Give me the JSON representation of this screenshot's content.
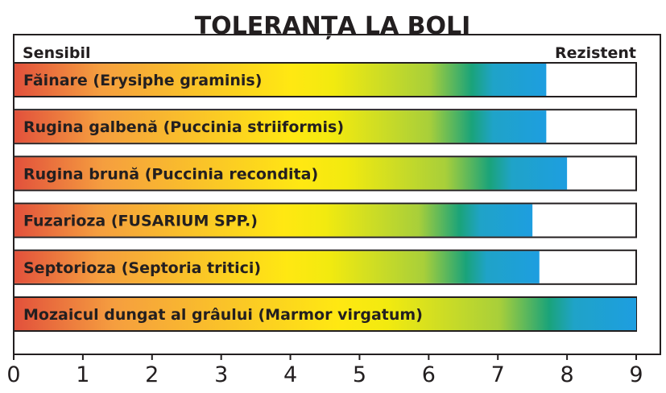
{
  "chart_data": {
    "type": "bar",
    "orientation": "horizontal",
    "title": "TOLERANȚA LA BOLI",
    "scale_left_label": "Sensibil",
    "scale_right_label": "Rezistent",
    "xlim": [
      0,
      9
    ],
    "x_ticks": [
      "0",
      "1",
      "2",
      "3",
      "4",
      "5",
      "6",
      "7",
      "8",
      "9"
    ],
    "grid": false,
    "legend": "none",
    "categories": [
      "Făinare (Erysiphe graminis)",
      "Rugina galbenă (Puccinia striiformis)",
      "Rugina brună (Puccinia recondita)",
      "Fuzarioza  (FUSARIUM SPP.)",
      "Septorioza (Septoria tritici)",
      "Mozaicul dungat al grâului (Marmor virgatum)"
    ],
    "values": [
      7.7,
      7.7,
      8.0,
      7.5,
      7.6,
      9.0
    ],
    "colors": {
      "gradient": [
        "#e2513c",
        "#f59e3f",
        "#ffe812",
        "#f2ea0f",
        "#a8cf3a",
        "#1aa37a",
        "#1fa3c8",
        "#1e9ee0"
      ],
      "text": "#231f20",
      "background": "#ffffff"
    }
  }
}
